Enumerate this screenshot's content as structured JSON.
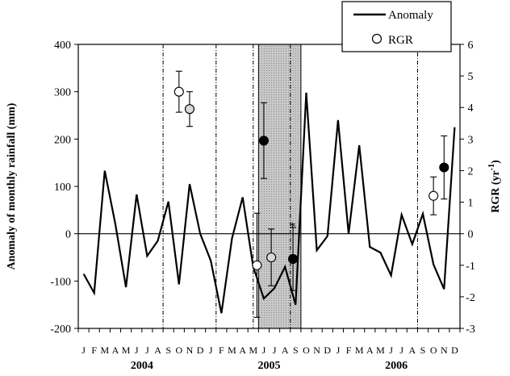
{
  "chart_data": {
    "type": "line",
    "months": [
      "J",
      "F",
      "M",
      "A",
      "M",
      "J",
      "J",
      "A",
      "S",
      "O",
      "N",
      "D",
      "J",
      "F",
      "M",
      "A",
      "M",
      "J",
      "J",
      "A",
      "S",
      "O",
      "N",
      "D",
      "J",
      "F",
      "M",
      "A",
      "M",
      "J",
      "J",
      "A",
      "S",
      "O",
      "N",
      "D"
    ],
    "years": [
      {
        "label": "2004",
        "center_index": 5.5
      },
      {
        "label": "2005",
        "center_index": 17.5
      },
      {
        "label": "2006",
        "center_index": 29.5
      }
    ],
    "left_axis": {
      "label": "Anomaly of monthly rainfall  (mm)",
      "ylim": [
        -200,
        400
      ],
      "ticks": [
        "-200",
        "-100",
        "0",
        "100",
        "200",
        "300",
        "400"
      ]
    },
    "right_axis": {
      "label": "RGR  (yr",
      "label_superscript": "-1",
      "label_suffix": ")",
      "ylim": [
        -3,
        6
      ],
      "ticks": [
        "-3",
        "-2",
        "-1",
        "0",
        "1",
        "2",
        "3",
        "4",
        "5",
        "6"
      ]
    },
    "anomaly": {
      "name": "Anomaly",
      "values": [
        -85,
        -125,
        133,
        20,
        -113,
        83,
        -47,
        -15,
        68,
        -107,
        105,
        0,
        -57,
        -168,
        -10,
        77,
        -70,
        -137,
        -115,
        -70,
        -150,
        298,
        -35,
        -5,
        240,
        0,
        187,
        -28,
        -40,
        -88,
        40,
        -22,
        42,
        -65,
        -117,
        225
      ]
    },
    "rgr": {
      "name": "RGR",
      "points": [
        {
          "month_index": 9.0,
          "value": 4.5,
          "err": 0.65,
          "fill": "#ffffff"
        },
        {
          "month_index": 10.0,
          "value": 3.95,
          "err": 0.55,
          "fill": "#d9d9d9"
        },
        {
          "month_index": 17.0,
          "value": 2.95,
          "err": 1.2,
          "fill": "#000000"
        },
        {
          "month_index": 16.35,
          "value": -1.0,
          "err": 1.65,
          "fill": "#ffffff"
        },
        {
          "month_index": 17.7,
          "value": -0.75,
          "err": 0.9,
          "fill": "#d9d9d9"
        },
        {
          "month_index": 19.75,
          "value": -0.8,
          "err": 1.0,
          "fill": "#000000"
        },
        {
          "month_index": 33.0,
          "value": 1.2,
          "err": 0.6,
          "fill": "#ffffff"
        },
        {
          "month_index": 34.0,
          "value": 2.1,
          "err": 1.0,
          "fill": "#000000"
        }
      ]
    },
    "asterisk": {
      "text": "*",
      "month_index": 19.7,
      "value": 0.3
    },
    "vertical_lines_month_index": [
      7.5,
      12.5,
      16.0,
      19.5,
      31.5
    ],
    "shaded_region_month_index": [
      17.0,
      21.0
    ],
    "grid": false,
    "legend": {
      "position": "top-right",
      "entries": [
        "Anomaly",
        "RGR"
      ]
    }
  }
}
